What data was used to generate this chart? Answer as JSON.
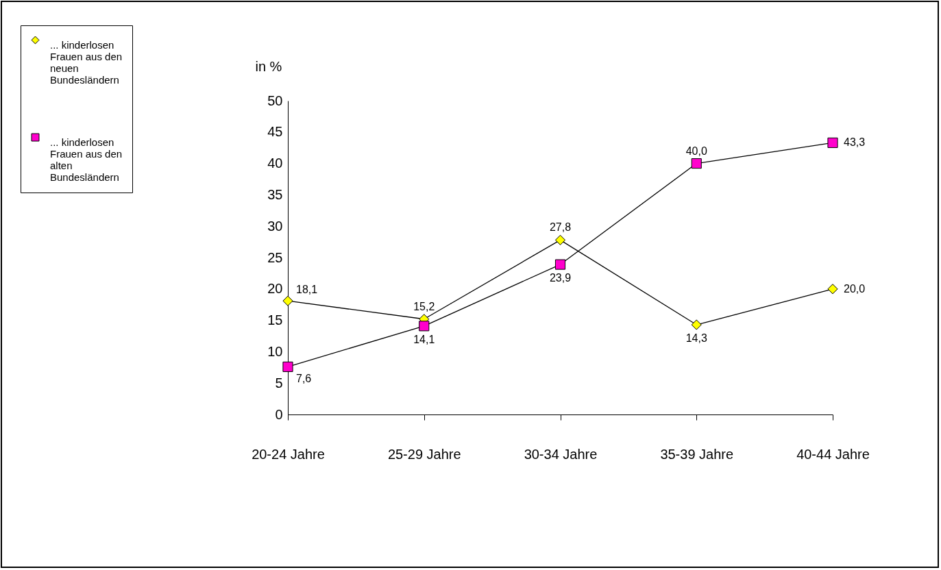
{
  "chart_data": {
    "type": "line",
    "ylabel": "in %",
    "categories": [
      "20-24 Jahre",
      "25-29 Jahre",
      "30-34 Jahre",
      "35-39 Jahre",
      "40-44 Jahre"
    ],
    "series": [
      {
        "name": "... kinderlosen Frauen aus den neuen Bundesländern",
        "color": "#ffff00",
        "marker": "diamond",
        "values": [
          18.1,
          15.2,
          27.8,
          14.3,
          20.0
        ],
        "value_labels": [
          "18,1",
          "15,2",
          "27,8",
          "14,3",
          "20,0"
        ]
      },
      {
        "name": "... kinderlosen Frauen aus den alten Bundesländern",
        "color": "#ff00cc",
        "marker": "square",
        "values": [
          7.6,
          14.1,
          23.9,
          40.0,
          43.3
        ],
        "value_labels": [
          "7,6",
          "14,1",
          "23,9",
          "40,0",
          "43,3"
        ]
      }
    ],
    "ylim": [
      0,
      50
    ],
    "yticks": [
      0,
      5,
      10,
      15,
      20,
      25,
      30,
      35,
      40,
      45,
      50
    ],
    "grid": false,
    "legend": "top left",
    "line_style": "solid"
  }
}
